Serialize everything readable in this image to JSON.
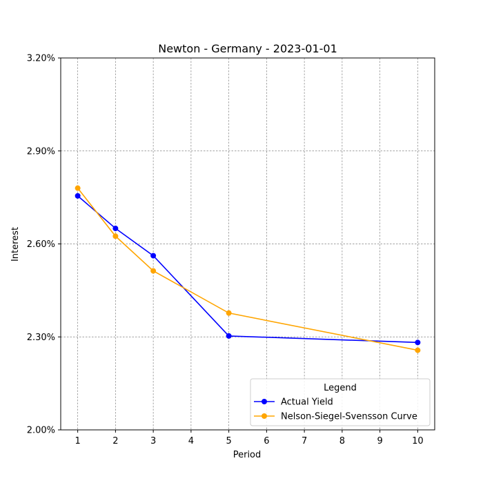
{
  "chart_data": {
    "type": "line",
    "title": "Newton - Germany - 2023-01-01",
    "xlabel": "Period",
    "ylabel": "Interest",
    "x_ticks": [
      "1",
      "2",
      "3",
      "4",
      "5",
      "6",
      "7",
      "8",
      "9",
      "10"
    ],
    "y_ticks": [
      "2.00%",
      "2.30%",
      "2.60%",
      "2.90%",
      "3.20%"
    ],
    "y_tick_values": [
      2.0,
      2.3,
      2.6,
      2.9,
      3.2
    ],
    "xlim": [
      0.55,
      10.45
    ],
    "ylim": [
      2.0,
      3.2
    ],
    "grid": true,
    "legend": {
      "title": "Legend",
      "placement": "lower-right"
    },
    "series": [
      {
        "name": "Actual Yield",
        "color": "#0000ff",
        "x": [
          1,
          2,
          3,
          5,
          10
        ],
        "values": [
          2.755,
          2.65,
          2.562,
          2.303,
          2.282
        ]
      },
      {
        "name": "Nelson-Siegel-Svensson Curve",
        "color": "#ffa500",
        "x": [
          1,
          2,
          3,
          5,
          10
        ],
        "values": [
          2.78,
          2.625,
          2.513,
          2.377,
          2.257
        ]
      }
    ]
  }
}
